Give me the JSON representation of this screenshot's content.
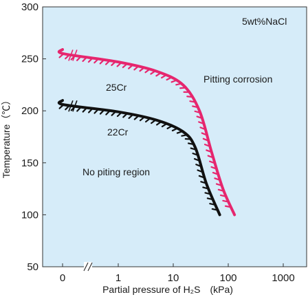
{
  "chart_data": {
    "type": "line",
    "title": "",
    "xlabel": "Partial pressure of H₂S　(kPa)",
    "ylabel": "Temperature（℃）",
    "x_scale": "log",
    "x_ticks": [
      0,
      1,
      10,
      100,
      1000
    ],
    "x_tick_labels": [
      "0",
      "1",
      "10",
      "100",
      "1000"
    ],
    "x_axis_break": "//",
    "y_ticks": [
      50,
      100,
      150,
      200,
      250,
      300
    ],
    "ylim": [
      50,
      300
    ],
    "grid": false,
    "background_color": "#d6ecf9",
    "annotations": {
      "condition": "5wt%NaCl",
      "upper_region": "Pitting corrosion",
      "lower_region": "No piting region"
    },
    "series": [
      {
        "name": "25Cr",
        "color": "#e6266e",
        "hatch_side": "below",
        "points": [
          {
            "x": "0",
            "y": 259
          },
          {
            "x": 0.1,
            "y": 255
          },
          {
            "x": 1,
            "y": 247
          },
          {
            "x": 5,
            "y": 238
          },
          {
            "x": 15,
            "y": 225
          },
          {
            "x": 30,
            "y": 200
          },
          {
            "x": 50,
            "y": 160
          },
          {
            "x": 80,
            "y": 125
          },
          {
            "x": 130,
            "y": 100
          }
        ]
      },
      {
        "name": "22Cr",
        "color": "#111111",
        "hatch_side": "below",
        "points": [
          {
            "x": "0",
            "y": 210
          },
          {
            "x": 0.1,
            "y": 206
          },
          {
            "x": 1,
            "y": 199
          },
          {
            "x": 5,
            "y": 191
          },
          {
            "x": 15,
            "y": 180
          },
          {
            "x": 25,
            "y": 165
          },
          {
            "x": 40,
            "y": 130
          },
          {
            "x": 70,
            "y": 100
          }
        ]
      }
    ]
  }
}
